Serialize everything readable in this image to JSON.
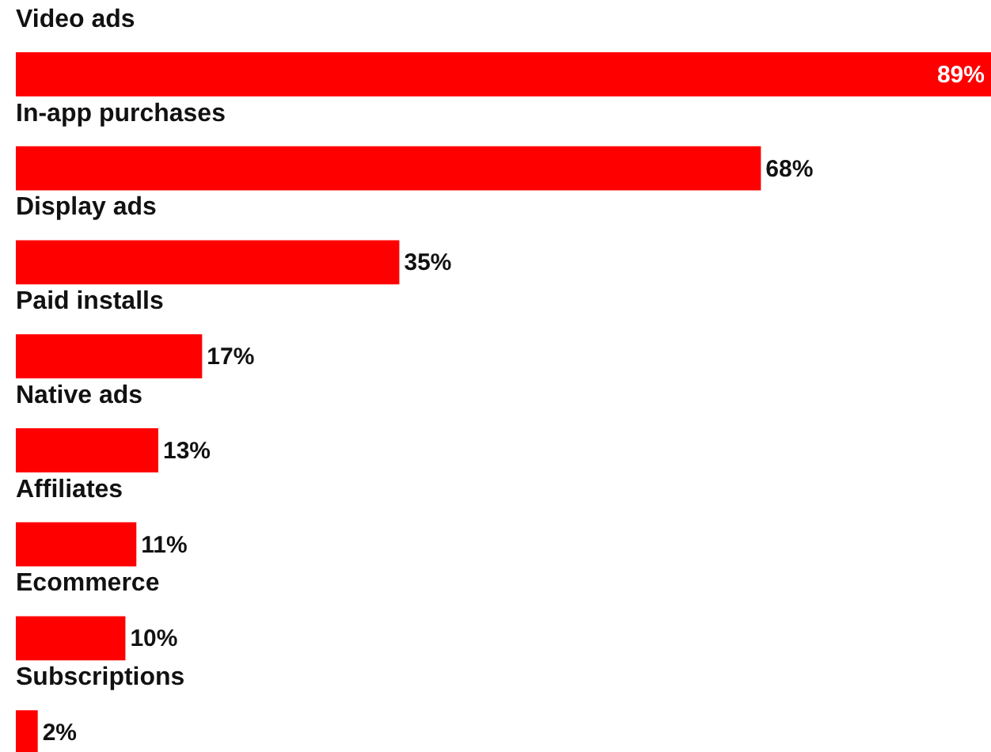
{
  "chart_data": {
    "type": "bar",
    "orientation": "horizontal",
    "categories": [
      "Video ads",
      "In-app purchases",
      "Display ads",
      "Paid installs",
      "Native ads",
      "Affiliates",
      "Ecommerce",
      "Subscriptions"
    ],
    "values": [
      89,
      68,
      35,
      17,
      13,
      11,
      10,
      2
    ],
    "value_labels": [
      "89%",
      "68%",
      "35%",
      "17%",
      "13%",
      "11%",
      "10%",
      "2%"
    ],
    "color": "#ff0000"
  }
}
